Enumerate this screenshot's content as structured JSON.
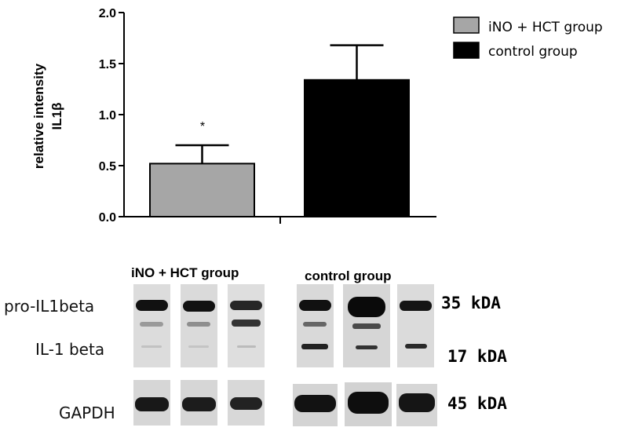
{
  "chart_data": {
    "type": "bar",
    "ylabel_line1": "relative intensity",
    "ylabel_line2": "IL1β",
    "ylim": [
      0,
      2.0
    ],
    "yticks": [
      "0.0",
      "0.5",
      "1.0",
      "1.5",
      "2.0"
    ],
    "categories": [
      "iNO + HCT group",
      "control group"
    ],
    "values": [
      0.52,
      1.34
    ],
    "errors": [
      0.18,
      0.34
    ],
    "colors": [
      "#a6a6a6",
      "#000000"
    ],
    "annotation": "*",
    "legend": {
      "placement": "top-right",
      "entries": [
        {
          "label": "iNO + HCT group",
          "color": "#a6a6a6"
        },
        {
          "label": "control group",
          "color": "#000000"
        }
      ]
    }
  },
  "blot": {
    "group_labels": [
      "iNO + HCT group",
      "control group"
    ],
    "row_labels": [
      "pro-IL1beta",
      "IL-1 beta",
      "GAPDH"
    ],
    "kda_labels": [
      "35 kDA",
      "17 kDA",
      "45 kDA"
    ]
  }
}
